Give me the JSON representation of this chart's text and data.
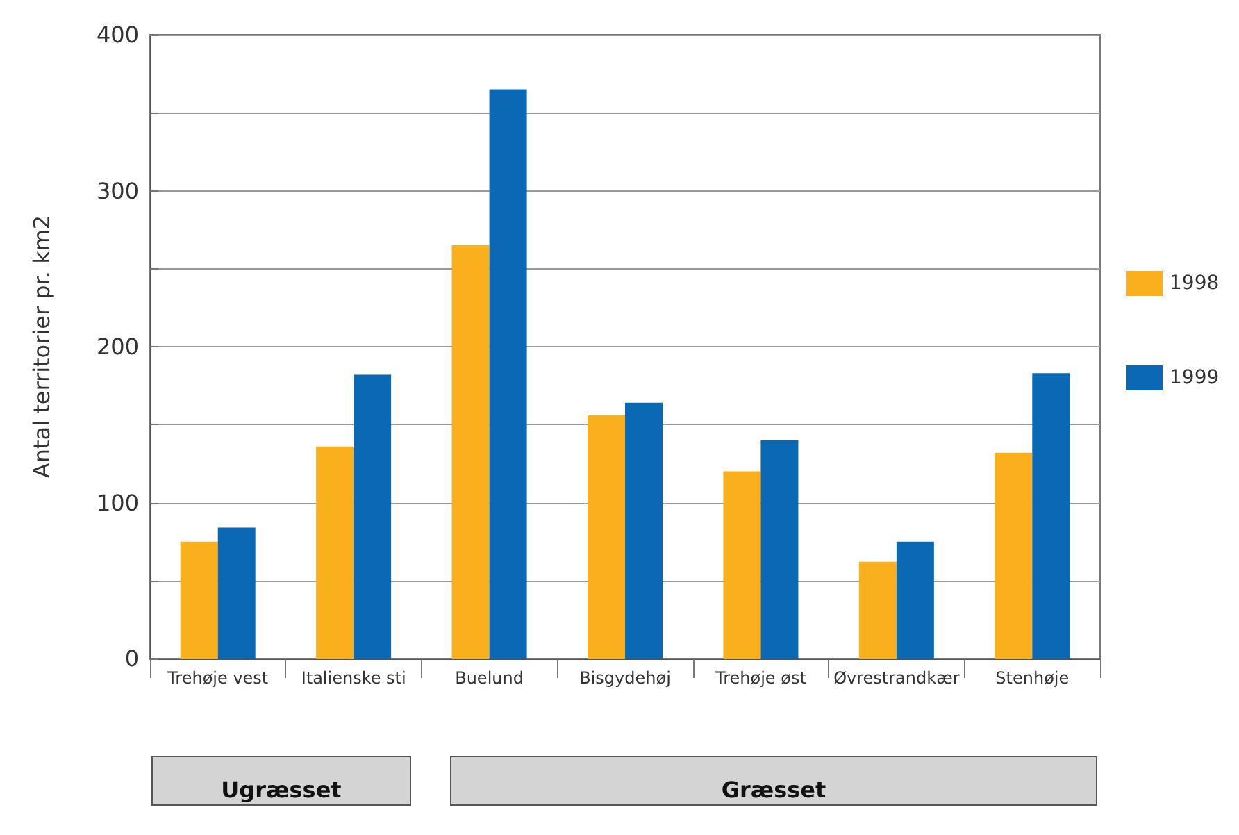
{
  "chart_data": {
    "type": "bar",
    "ylabel": "Antal territorier pr. km2",
    "categories": [
      "Trehøje vest",
      "Italienske sti",
      "Buelund",
      "Bisgydehøj",
      "Trehøje øst",
      "Øvrestrandkær",
      "Stenhøje"
    ],
    "series": [
      {
        "name": "1998",
        "color": "#f9b01c",
        "values": [
          75,
          136,
          265,
          156,
          120,
          62,
          132
        ]
      },
      {
        "name": "1999",
        "color": "#0a68b5",
        "values": [
          84,
          182,
          365,
          164,
          140,
          75,
          183
        ]
      }
    ],
    "ylim": [
      0,
      400
    ],
    "yticks": [
      0,
      {
        "value": 50,
        "label": null
      },
      100,
      {
        "value": 150,
        "label": null
      },
      200,
      {
        "value": 250,
        "label": null
      },
      300,
      {
        "value": 350,
        "label": null
      },
      400
    ],
    "grid": "y",
    "legend": "right",
    "annotations": [
      "Ugræsset",
      "Græsset"
    ]
  }
}
